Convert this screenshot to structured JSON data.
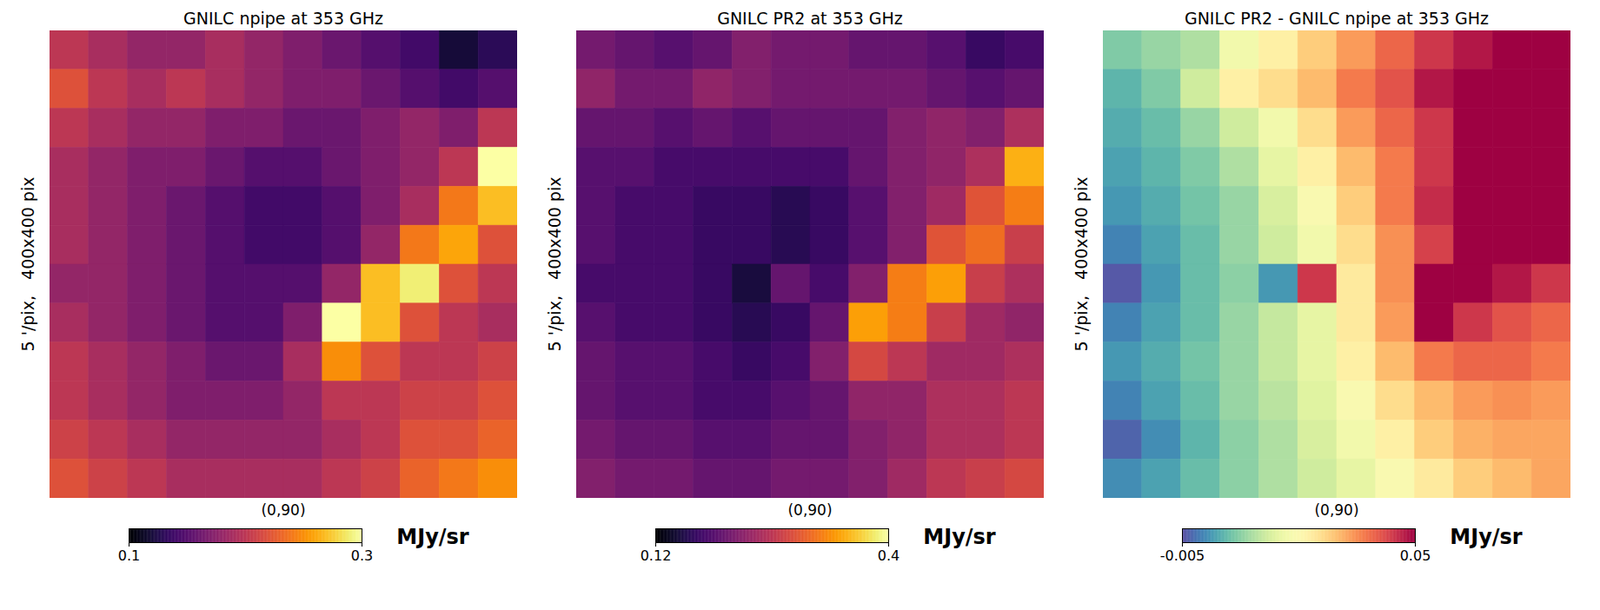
{
  "chart_data": [
    {
      "type": "heatmap",
      "title": "GNILC npipe at 353 GHz",
      "xlabel": "(0,90)",
      "ylabel": "5 '/pix,   400x400 pix",
      "tick_labels": false,
      "color": "inferno",
      "colorbar": {
        "range": [
          0.1,
          0.3
        ],
        "ticks": [
          0.1,
          0.3
        ],
        "label": "MJy/sr"
      },
      "values": [
        [
          0.2,
          0.19,
          0.18,
          0.18,
          0.19,
          0.18,
          0.17,
          0.16,
          0.15,
          0.14,
          0.12,
          0.13
        ],
        [
          0.22,
          0.2,
          0.19,
          0.2,
          0.19,
          0.18,
          0.17,
          0.17,
          0.16,
          0.15,
          0.14,
          0.15
        ],
        [
          0.2,
          0.19,
          0.18,
          0.18,
          0.17,
          0.17,
          0.16,
          0.16,
          0.17,
          0.18,
          0.17,
          0.2
        ],
        [
          0.19,
          0.18,
          0.17,
          0.17,
          0.16,
          0.15,
          0.15,
          0.16,
          0.17,
          0.18,
          0.2,
          0.3
        ],
        [
          0.19,
          0.18,
          0.17,
          0.16,
          0.15,
          0.14,
          0.14,
          0.15,
          0.17,
          0.19,
          0.24,
          0.27
        ],
        [
          0.19,
          0.18,
          0.17,
          0.16,
          0.15,
          0.14,
          0.14,
          0.15,
          0.18,
          0.24,
          0.26,
          0.22
        ],
        [
          0.18,
          0.18,
          0.17,
          0.16,
          0.15,
          0.15,
          0.15,
          0.18,
          0.27,
          0.29,
          0.22,
          0.2
        ],
        [
          0.19,
          0.18,
          0.17,
          0.16,
          0.15,
          0.15,
          0.17,
          0.3,
          0.27,
          0.22,
          0.2,
          0.19
        ],
        [
          0.2,
          0.19,
          0.18,
          0.17,
          0.16,
          0.16,
          0.19,
          0.25,
          0.22,
          0.2,
          0.2,
          0.21
        ],
        [
          0.2,
          0.19,
          0.18,
          0.17,
          0.17,
          0.17,
          0.18,
          0.2,
          0.2,
          0.21,
          0.21,
          0.22
        ],
        [
          0.21,
          0.2,
          0.19,
          0.18,
          0.18,
          0.18,
          0.18,
          0.19,
          0.2,
          0.22,
          0.22,
          0.23
        ],
        [
          0.22,
          0.21,
          0.2,
          0.19,
          0.19,
          0.19,
          0.19,
          0.2,
          0.21,
          0.23,
          0.24,
          0.25
        ]
      ]
    },
    {
      "type": "heatmap",
      "title": "GNILC PR2 at 353 GHz",
      "xlabel": "(0,90)",
      "ylabel": "5 '/pix,   400x400 pix",
      "tick_labels": false,
      "color": "inferno",
      "colorbar": {
        "range": [
          0.12,
          0.4
        ],
        "ticks": [
          0.12,
          0.4
        ],
        "label": "MJy/sr"
      },
      "values": [
        [
          0.21,
          0.2,
          0.19,
          0.2,
          0.22,
          0.21,
          0.21,
          0.2,
          0.2,
          0.19,
          0.17,
          0.18
        ],
        [
          0.23,
          0.21,
          0.21,
          0.23,
          0.22,
          0.21,
          0.21,
          0.21,
          0.21,
          0.2,
          0.19,
          0.2
        ],
        [
          0.2,
          0.2,
          0.19,
          0.2,
          0.19,
          0.2,
          0.2,
          0.2,
          0.22,
          0.23,
          0.22,
          0.25
        ],
        [
          0.19,
          0.19,
          0.18,
          0.18,
          0.18,
          0.18,
          0.18,
          0.2,
          0.22,
          0.23,
          0.25,
          0.35
        ],
        [
          0.19,
          0.18,
          0.18,
          0.17,
          0.17,
          0.16,
          0.17,
          0.19,
          0.22,
          0.24,
          0.29,
          0.32
        ],
        [
          0.19,
          0.18,
          0.18,
          0.17,
          0.17,
          0.16,
          0.17,
          0.19,
          0.22,
          0.29,
          0.31,
          0.27
        ],
        [
          0.18,
          0.18,
          0.18,
          0.17,
          0.15,
          0.2,
          0.18,
          0.22,
          0.32,
          0.34,
          0.27,
          0.25
        ],
        [
          0.19,
          0.18,
          0.18,
          0.17,
          0.16,
          0.17,
          0.2,
          0.34,
          0.32,
          0.27,
          0.24,
          0.23
        ],
        [
          0.2,
          0.19,
          0.19,
          0.18,
          0.17,
          0.18,
          0.22,
          0.28,
          0.26,
          0.24,
          0.24,
          0.25
        ],
        [
          0.2,
          0.19,
          0.19,
          0.18,
          0.18,
          0.19,
          0.2,
          0.23,
          0.23,
          0.25,
          0.25,
          0.26
        ],
        [
          0.21,
          0.2,
          0.2,
          0.19,
          0.19,
          0.2,
          0.2,
          0.22,
          0.23,
          0.25,
          0.25,
          0.26
        ],
        [
          0.22,
          0.21,
          0.21,
          0.2,
          0.2,
          0.21,
          0.21,
          0.22,
          0.24,
          0.26,
          0.27,
          0.28
        ]
      ]
    },
    {
      "type": "heatmap",
      "title": "GNILC PR2 - GNILC npipe at 353 GHz",
      "xlabel": "(0,90)",
      "ylabel": "5 '/pix,   400x400 pix",
      "tick_labels": false,
      "color": "spectral_r",
      "colorbar": {
        "range": [
          -0.005,
          0.05
        ],
        "ticks": [
          -0.005,
          0.05
        ],
        "label": "MJy/sr"
      },
      "values": [
        [
          0.008,
          0.01,
          0.012,
          0.02,
          0.025,
          0.03,
          0.035,
          0.04,
          0.045,
          0.048,
          0.05,
          0.05
        ],
        [
          0.005,
          0.008,
          0.015,
          0.025,
          0.028,
          0.032,
          0.038,
          0.042,
          0.048,
          0.05,
          0.05,
          0.05
        ],
        [
          0.004,
          0.006,
          0.01,
          0.015,
          0.02,
          0.028,
          0.035,
          0.04,
          0.045,
          0.05,
          0.05,
          0.05
        ],
        [
          0.003,
          0.005,
          0.008,
          0.012,
          0.018,
          0.025,
          0.032,
          0.038,
          0.045,
          0.05,
          0.05,
          0.05
        ],
        [
          0.002,
          0.004,
          0.007,
          0.01,
          0.016,
          0.022,
          0.03,
          0.038,
          0.046,
          0.05,
          0.05,
          0.05
        ],
        [
          0.0,
          0.003,
          0.006,
          0.01,
          0.015,
          0.02,
          0.028,
          0.036,
          0.044,
          0.05,
          0.05,
          0.05
        ],
        [
          -0.004,
          0.002,
          0.006,
          0.009,
          0.002,
          0.045,
          0.026,
          0.036,
          0.05,
          0.05,
          0.048,
          0.045
        ],
        [
          0.0,
          0.003,
          0.006,
          0.01,
          0.014,
          0.018,
          0.026,
          0.035,
          0.05,
          0.045,
          0.042,
          0.04
        ],
        [
          0.002,
          0.004,
          0.007,
          0.01,
          0.014,
          0.018,
          0.025,
          0.032,
          0.038,
          0.04,
          0.04,
          0.038
        ],
        [
          0.0,
          0.003,
          0.006,
          0.01,
          0.013,
          0.017,
          0.022,
          0.028,
          0.032,
          0.035,
          0.036,
          0.035
        ],
        [
          -0.003,
          0.001,
          0.005,
          0.009,
          0.012,
          0.016,
          0.02,
          0.025,
          0.03,
          0.033,
          0.034,
          0.034
        ],
        [
          0.001,
          0.003,
          0.006,
          0.009,
          0.012,
          0.015,
          0.018,
          0.022,
          0.026,
          0.03,
          0.032,
          0.034
        ]
      ]
    }
  ]
}
